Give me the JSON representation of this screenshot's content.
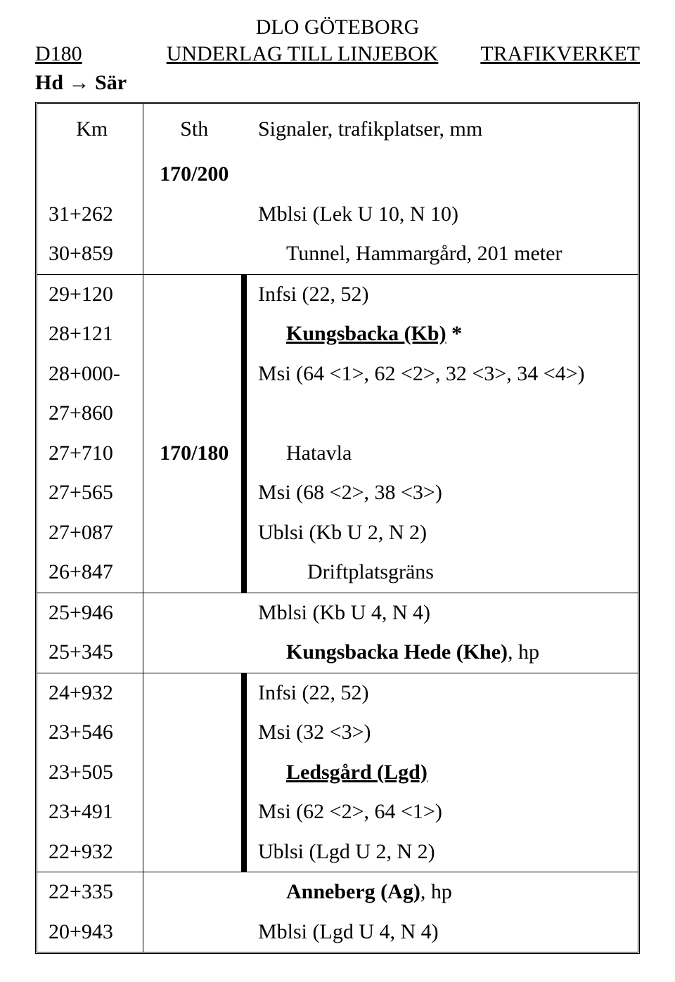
{
  "header": {
    "center_top": "DLO GÖTEBORG",
    "left": "D180",
    "center": "UNDERLAG TILL LINJEBOK",
    "right": "TRAFIKVERKET"
  },
  "subhead_parts": {
    "a": "Hd ",
    "b": "→",
    "c": " Sär"
  },
  "columns": {
    "km": "Km",
    "sth": "Sth",
    "sig": "Signaler, trafikplatser, mm"
  },
  "pre_sth": "170/200",
  "rows_seg1": [
    {
      "km": "31+262",
      "sth": "",
      "sig_plain": "Mblsi (Lek U 10, N 10)"
    },
    {
      "km": "30+859",
      "sth": "",
      "sig_indent1": "Tunnel, Hammargård, 201 meter"
    }
  ],
  "rows_seg2": [
    {
      "km": "29+120",
      "sth": "",
      "sig_plain": "Infsi (22, 52)"
    },
    {
      "km": "28+121",
      "sth": "",
      "sig_indent1_boldul": "Kungsbacka (Kb)",
      "suffix": " *"
    },
    {
      "km": "28+000-",
      "sth": "",
      "sig_plain": "Msi (64 <1>, 62 <2>, 32 <3>, 34 <4>)"
    },
    {
      "km": "27+860",
      "sth": "",
      "sig_plain": ""
    },
    {
      "km": "27+710",
      "sth": "170/180",
      "sig_indent1": "Hatavla"
    },
    {
      "km": "27+565",
      "sth": "",
      "sig_plain": "Msi (68 <2>, 38 <3>)"
    },
    {
      "km": "27+087",
      "sth": "",
      "sig_plain": "Ublsi (Kb U 2, N 2)"
    },
    {
      "km": "26+847",
      "sth": "",
      "sig_indent2": "Driftplatsgräns"
    }
  ],
  "rows_seg3": [
    {
      "km": "25+946",
      "sth": "",
      "sig_plain": "Mblsi (Kb U 4, N 4)"
    },
    {
      "km": "25+345",
      "sth": "",
      "sig_indent1_bold": "Kungsbacka Hede (Khe)",
      "suffix": ", hp"
    }
  ],
  "rows_seg4": [
    {
      "km": "24+932",
      "sth": "",
      "sig_plain": "Infsi (22, 52)"
    },
    {
      "km": "23+546",
      "sth": "",
      "sig_plain": "Msi (32 <3>)"
    },
    {
      "km": "23+505",
      "sth": "",
      "sig_indent1_boldul": "Ledsgård (Lgd)",
      "suffix": ""
    },
    {
      "km": "23+491",
      "sth": "",
      "sig_plain": "Msi (62 <2>, 64 <1>)"
    },
    {
      "km": "22+932",
      "sth": "",
      "sig_plain": "Ublsi (Lgd U 2, N 2)"
    }
  ],
  "rows_seg5": [
    {
      "km": "22+335",
      "sth": "",
      "sig_indent1_bold": "Anneberg (Ag)",
      "suffix": ", hp"
    },
    {
      "km": "20+943",
      "sth": "",
      "sig_plain": "Mblsi (Lgd U 4, N 4)"
    }
  ]
}
